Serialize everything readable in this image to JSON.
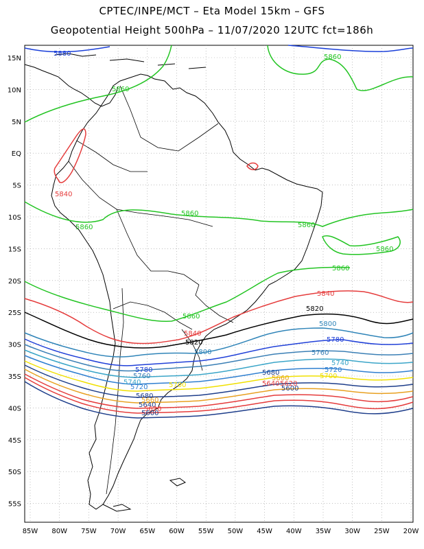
{
  "header": {
    "line1": "CPTEC/INPE/MCT –  Eta Model 15km – GFS",
    "line2": "Geopotential Height 500hPa – 11/07/2020 12UTC fct=186h"
  },
  "axes": {
    "lat_labels": [
      "15N",
      "10N",
      "5N",
      "EQ",
      "5S",
      "10S",
      "15S",
      "20S",
      "25S",
      "30S",
      "35S",
      "40S",
      "45S",
      "50S",
      "55S"
    ],
    "lon_labels": [
      "85W",
      "80W",
      "75W",
      "70W",
      "65W",
      "60W",
      "55W",
      "50W",
      "45W",
      "40W",
      "35W",
      "30W",
      "25W",
      "20W"
    ]
  },
  "colors": {
    "c5880": "#1a3fd9",
    "c5860": "#22c422",
    "c5840": "#e53b3b",
    "c5820": "#000000",
    "c5800": "#2f84b8",
    "c5780": "#2040d8",
    "c5760": "#3a7fb5",
    "c5740": "#3aa5c8",
    "c5720": "#2f7fd0",
    "c5700": "#f0e000",
    "c5680": "#1d3d8a",
    "c5660": "#e8a020",
    "c5640": "#e53b3b",
    "c5620": "#e53b3b",
    "c5600": "#1d3d8a",
    "land": "#000000",
    "grid": "#999999"
  },
  "contour_labels": {
    "v5880": "5880",
    "v5860": "5860",
    "v5840": "5840",
    "v5820": "5820",
    "v5800": "5800",
    "v5780": "5780",
    "v5760": "5760",
    "v5740": "5740",
    "v5720": "5720",
    "v5700": "5700",
    "v5680": "5680",
    "v5660": "5660",
    "v5640": "5640",
    "v5620": "5620",
    "v5600": "5600"
  }
}
